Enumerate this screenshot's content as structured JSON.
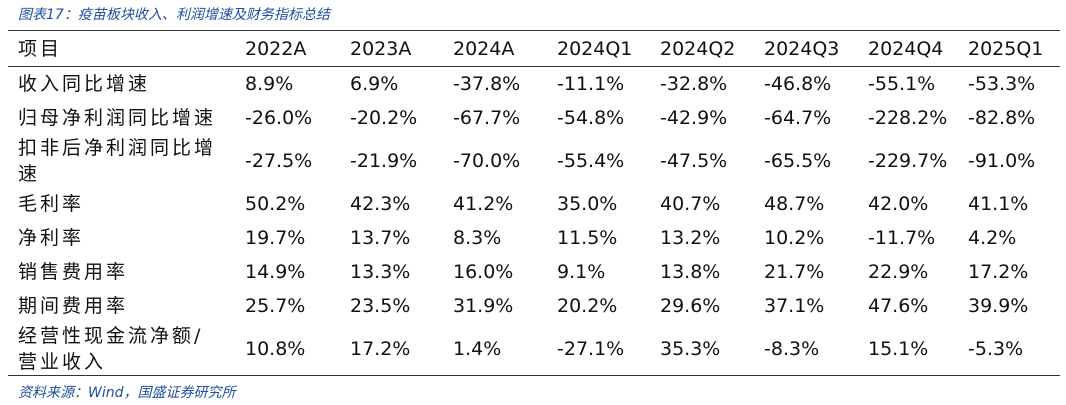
{
  "title": "图表17：疫苗板块收入、利润增速及财务指标总结",
  "table": {
    "header": [
      "项目",
      "2022A",
      "2023A",
      "2024A",
      "2024Q1",
      "2024Q2",
      "2024Q3",
      "2024Q4",
      "2025Q1"
    ],
    "rows": [
      [
        "收入同比增速",
        "8.9%",
        "6.9%",
        "-37.8%",
        "-11.1%",
        "-32.8%",
        "-46.8%",
        "-55.1%",
        "-53.3%"
      ],
      [
        "归母净利润同比增速",
        "-26.0%",
        "-20.2%",
        "-67.7%",
        "-54.8%",
        "-42.9%",
        "-64.7%",
        "-228.2%",
        "-82.8%"
      ],
      [
        "扣非后净利润同比增速",
        "-27.5%",
        "-21.9%",
        "-70.0%",
        "-55.4%",
        "-47.5%",
        "-65.5%",
        "-229.7%",
        "-91.0%"
      ],
      [
        "毛利率",
        "50.2%",
        "42.3%",
        "41.2%",
        "35.0%",
        "40.7%",
        "48.7%",
        "42.0%",
        "41.1%"
      ],
      [
        "净利率",
        "19.7%",
        "13.7%",
        "8.3%",
        "11.5%",
        "13.2%",
        "10.2%",
        "-11.7%",
        "4.2%"
      ],
      [
        "销售费用率",
        "14.9%",
        "13.3%",
        "16.0%",
        "9.1%",
        "13.8%",
        "21.7%",
        "22.9%",
        "17.2%"
      ],
      [
        "期间费用率",
        "25.7%",
        "23.5%",
        "31.9%",
        "20.2%",
        "29.6%",
        "37.1%",
        "47.6%",
        "39.9%"
      ],
      [
        "经营性现金流净额/营业收入",
        "10.8%",
        "17.2%",
        "1.4%",
        "-27.1%",
        "35.3%",
        "-8.3%",
        "15.1%",
        "-5.3%"
      ]
    ]
  },
  "source": "资料来源：Wind，国盛证券研究所"
}
